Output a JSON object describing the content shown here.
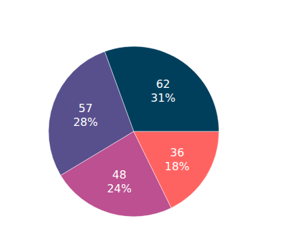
{
  "chart_data": {
    "type": "pie",
    "values": [
      62,
      57,
      48,
      36
    ],
    "percentages": [
      {
        "value": 31,
        "label": "31%"
      },
      {
        "value": 28,
        "label": "28%"
      },
      {
        "value": 24,
        "label": "24%"
      },
      {
        "value": 18,
        "label": "18%"
      }
    ],
    "colors": [
      "#003f5c",
      "#58508d",
      "#bc5090",
      "#ff6361"
    ],
    "data_labels": true
  }
}
